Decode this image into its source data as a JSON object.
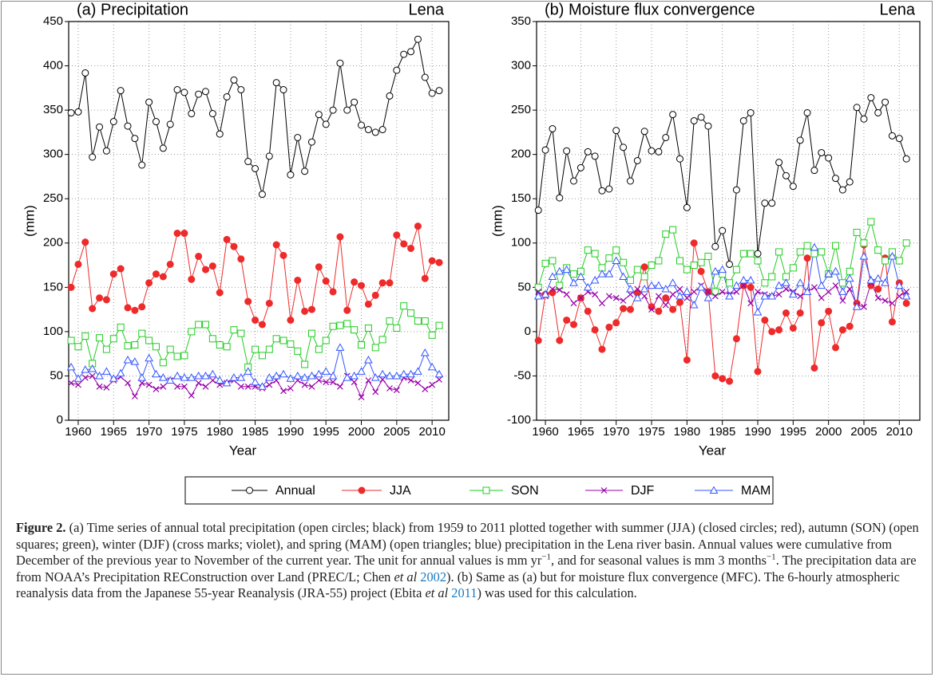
{
  "chart_data": [
    {
      "type": "line",
      "title": "(a) Precipitation",
      "region": "Lena",
      "xlabel": "Year",
      "ylabel": "(mm)",
      "x": [
        1959,
        1960,
        1961,
        1962,
        1963,
        1964,
        1965,
        1966,
        1967,
        1968,
        1969,
        1970,
        1971,
        1972,
        1973,
        1974,
        1975,
        1976,
        1977,
        1978,
        1979,
        1980,
        1981,
        1982,
        1983,
        1984,
        1985,
        1986,
        1987,
        1988,
        1989,
        1990,
        1991,
        1992,
        1993,
        1994,
        1995,
        1996,
        1997,
        1998,
        1999,
        2000,
        2001,
        2002,
        2003,
        2004,
        2005,
        2006,
        2007,
        2008,
        2009,
        2010,
        2011
      ],
      "xlim": [
        1958.65,
        2012.35
      ],
      "xticks": [
        1960,
        1965,
        1970,
        1975,
        1980,
        1985,
        1990,
        1995,
        2000,
        2005,
        2010
      ],
      "ylim": [
        0,
        450
      ],
      "yticks": [
        0,
        50,
        100,
        150,
        200,
        250,
        300,
        350,
        400,
        450
      ],
      "grid": true,
      "series": [
        {
          "name": "Annual",
          "color": "#000000",
          "marker": "open-circle",
          "values": [
            347,
            348,
            392,
            297,
            331,
            304,
            337,
            372,
            332,
            318,
            288,
            359,
            337,
            307,
            334,
            373,
            370,
            346,
            368,
            371,
            346,
            323,
            365,
            384,
            373,
            292,
            284,
            255,
            298,
            381,
            373,
            277,
            319,
            281,
            314,
            345,
            334,
            350,
            403,
            350,
            359,
            333,
            328,
            325,
            328,
            366,
            395,
            413,
            416,
            430,
            387,
            369,
            372
          ]
        },
        {
          "name": "JJA",
          "color": "#ee2a2a",
          "marker": "filled-circle",
          "values": [
            150,
            176,
            201,
            126,
            138,
            136,
            165,
            171,
            127,
            124,
            128,
            155,
            165,
            162,
            176,
            211,
            211,
            159,
            185,
            170,
            174,
            144,
            204,
            196,
            182,
            134,
            113,
            108,
            132,
            198,
            186,
            113,
            158,
            123,
            125,
            173,
            157,
            145,
            207,
            124,
            156,
            152,
            131,
            141,
            155,
            155,
            209,
            199,
            194,
            219,
            160,
            180,
            178
          ]
        },
        {
          "name": "SON",
          "color": "#22cc22",
          "marker": "open-square",
          "values": [
            90,
            83,
            95,
            64,
            93,
            80,
            92,
            105,
            84,
            85,
            98,
            90,
            83,
            65,
            80,
            72,
            73,
            100,
            108,
            108,
            92,
            85,
            83,
            102,
            98,
            60,
            80,
            73,
            80,
            92,
            90,
            86,
            78,
            63,
            98,
            80,
            90,
            106,
            107,
            109,
            102,
            85,
            104,
            82,
            91,
            112,
            104,
            129,
            121,
            112,
            112,
            96,
            107
          ]
        },
        {
          "name": "DJF",
          "color": "#9900aa",
          "marker": "cross",
          "values": [
            42,
            40,
            48,
            50,
            38,
            37,
            45,
            49,
            42,
            27,
            42,
            40,
            35,
            38,
            45,
            38,
            38,
            28,
            42,
            38,
            45,
            40,
            42,
            45,
            38,
            38,
            38,
            36,
            40,
            45,
            33,
            36,
            45,
            40,
            38,
            45,
            43,
            43,
            38,
            50,
            43,
            26,
            45,
            32,
            46,
            36,
            34,
            48,
            45,
            42,
            35,
            40,
            46
          ]
        },
        {
          "name": "MAM",
          "color": "#3355ff",
          "marker": "open-triangle",
          "values": [
            60,
            47,
            57,
            58,
            50,
            55,
            47,
            53,
            68,
            66,
            48,
            70,
            52,
            48,
            45,
            50,
            48,
            48,
            50,
            50,
            52,
            45,
            42,
            48,
            48,
            55,
            43,
            38,
            48,
            50,
            52,
            47,
            50,
            48,
            50,
            52,
            55,
            50,
            82,
            48,
            50,
            55,
            68,
            48,
            52,
            50,
            50,
            52,
            52,
            55,
            76,
            60,
            52
          ]
        }
      ]
    },
    {
      "type": "line",
      "title": "(b) Moisture flux convergence",
      "region": "Lena",
      "xlabel": "Year",
      "ylabel": "(mm)",
      "x": [
        1959,
        1960,
        1961,
        1962,
        1963,
        1964,
        1965,
        1966,
        1967,
        1968,
        1969,
        1970,
        1971,
        1972,
        1973,
        1974,
        1975,
        1976,
        1977,
        1978,
        1979,
        1980,
        1981,
        1982,
        1983,
        1984,
        1985,
        1986,
        1987,
        1988,
        1989,
        1990,
        1991,
        1992,
        1993,
        1994,
        1995,
        1996,
        1997,
        1998,
        1999,
        2000,
        2001,
        2002,
        2003,
        2004,
        2005,
        2006,
        2007,
        2008,
        2009,
        2010,
        2011
      ],
      "xlim": [
        1958.75,
        2012.9
      ],
      "xticks": [
        1960,
        1965,
        1970,
        1975,
        1980,
        1985,
        1990,
        1995,
        2000,
        2005,
        2010
      ],
      "ylim": [
        -100,
        350
      ],
      "yticks": [
        -100,
        -50,
        0,
        50,
        100,
        150,
        200,
        250,
        300,
        350
      ],
      "grid": true,
      "series": [
        {
          "color": "#000000",
          "marker": "open-circle",
          "values": [
            137,
            205,
            229,
            151,
            204,
            170,
            185,
            203,
            198,
            159,
            161,
            227,
            208,
            170,
            193,
            226,
            204,
            203,
            219,
            245,
            195,
            140,
            238,
            242,
            232,
            96,
            114,
            76,
            160,
            238,
            247,
            88,
            145,
            145,
            191,
            176,
            164,
            216,
            247,
            182,
            202,
            196,
            173,
            160,
            169,
            253,
            240,
            264,
            247,
            259,
            221,
            218,
            195
          ]
        },
        {
          "color": "#ee2a2a",
          "marker": "filled-circle",
          "values": [
            -10,
            42,
            44,
            -10,
            13,
            8,
            38,
            23,
            2,
            -20,
            5,
            10,
            26,
            25,
            44,
            73,
            28,
            23,
            38,
            25,
            33,
            -32,
            100,
            68,
            45,
            -50,
            -53,
            -56,
            -8,
            52,
            50,
            -45,
            13,
            0,
            2,
            21,
            4,
            21,
            83,
            -41,
            10,
            23,
            -18,
            2,
            6,
            32,
            98,
            52,
            48,
            83,
            11,
            55,
            32
          ]
        },
        {
          "color": "#22cc22",
          "marker": "open-square",
          "values": [
            50,
            77,
            80,
            52,
            72,
            65,
            68,
            92,
            88,
            72,
            83,
            92,
            78,
            58,
            70,
            62,
            75,
            80,
            110,
            115,
            80,
            70,
            75,
            78,
            85,
            45,
            65,
            55,
            70,
            88,
            88,
            80,
            55,
            62,
            90,
            62,
            72,
            90,
            97,
            88,
            90,
            65,
            97,
            55,
            68,
            112,
            100,
            124,
            92,
            80,
            90,
            80,
            100
          ]
        },
        {
          "color": "#9900aa",
          "marker": "cross",
          "values": [
            45,
            40,
            48,
            47,
            42,
            32,
            38,
            45,
            42,
            32,
            40,
            38,
            35,
            42,
            48,
            40,
            25,
            40,
            30,
            42,
            48,
            38,
            45,
            52,
            45,
            40,
            45,
            42,
            45,
            52,
            32,
            45,
            42,
            40,
            42,
            48,
            45,
            40,
            45,
            50,
            38,
            45,
            52,
            35,
            48,
            30,
            28,
            55,
            38,
            35,
            32,
            40,
            45
          ]
        },
        {
          "color": "#3355ff",
          "marker": "open-triangle",
          "values": [
            40,
            42,
            62,
            68,
            70,
            55,
            62,
            50,
            58,
            65,
            65,
            80,
            62,
            48,
            38,
            48,
            52,
            52,
            48,
            55,
            40,
            45,
            30,
            50,
            38,
            68,
            70,
            40,
            52,
            58,
            58,
            22,
            40,
            40,
            52,
            55,
            42,
            55,
            45,
            95,
            52,
            65,
            68,
            45,
            60,
            28,
            85,
            58,
            60,
            55,
            85,
            52,
            40
          ]
        }
      ]
    }
  ],
  "caption": {
    "runs": [
      {
        "text": "Figure 2.",
        "style": "bold"
      },
      {
        "text": " (a) Time series of annual total precipitation (open circles; black) from 1959 to 2011 plotted together with summer (JJA) (closed circles; red), autumn (SON) (open squares; green), winter (DJF) (cross marks; violet), and spring (MAM) (open triangles; blue) precipitation in the Lena river basin. Annual values were cumulative from December of the previous year to November of the current year. The unit for annual values is mm yr",
        "style": "plain"
      },
      {
        "text": "−1",
        "style": "sup"
      },
      {
        "text": ", and for seasonal values is mm 3 months",
        "style": "plain"
      },
      {
        "text": "−1",
        "style": "sup"
      },
      {
        "text": ". The precipitation data are from NOAA’s Precipitation REConstruction over Land (PREC/L; Chen ",
        "style": "plain"
      },
      {
        "text": "et al",
        "style": "italic"
      },
      {
        "text": " ",
        "style": "plain"
      },
      {
        "text": "2002",
        "style": "link"
      },
      {
        "text": "). (b) Same as (a) but for moisture flux convergence (MFC). The 6-hourly atmospheric reanalysis data from the Japanese 55-year Reanalysis (JRA-55) project (Ebita ",
        "style": "plain"
      },
      {
        "text": "et al",
        "style": "italic"
      },
      {
        "text": " ",
        "style": "plain"
      },
      {
        "text": "2011",
        "style": "link"
      },
      {
        "text": ") was used for this calculation.",
        "style": "plain"
      }
    ]
  }
}
